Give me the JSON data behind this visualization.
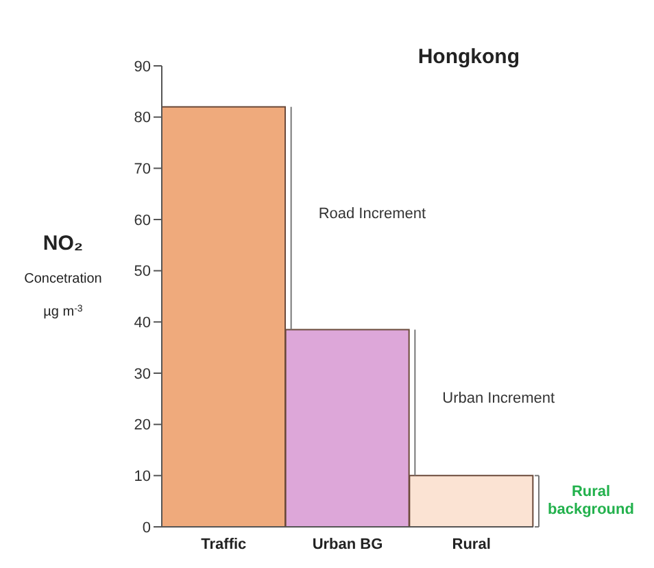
{
  "chart_data": {
    "type": "bar",
    "title": "Hongkong",
    "ylabel": "NO₂\nConcetration\nµg m$^{-3}$",
    "categories": [
      "Traffic",
      "Urban BG",
      "Rural"
    ],
    "values": [
      82,
      38.5,
      10
    ],
    "colors": [
      "#efaa7c",
      "#dda7d9",
      "#fbe3d3"
    ],
    "ylim": [
      0,
      90
    ],
    "yticks": [
      0,
      10,
      20,
      30,
      40,
      50,
      60,
      70,
      80,
      90
    ],
    "grid": false,
    "legend": false,
    "annotations": [
      "Road Increment",
      "Urban Increment",
      "Rural background"
    ]
  }
}
